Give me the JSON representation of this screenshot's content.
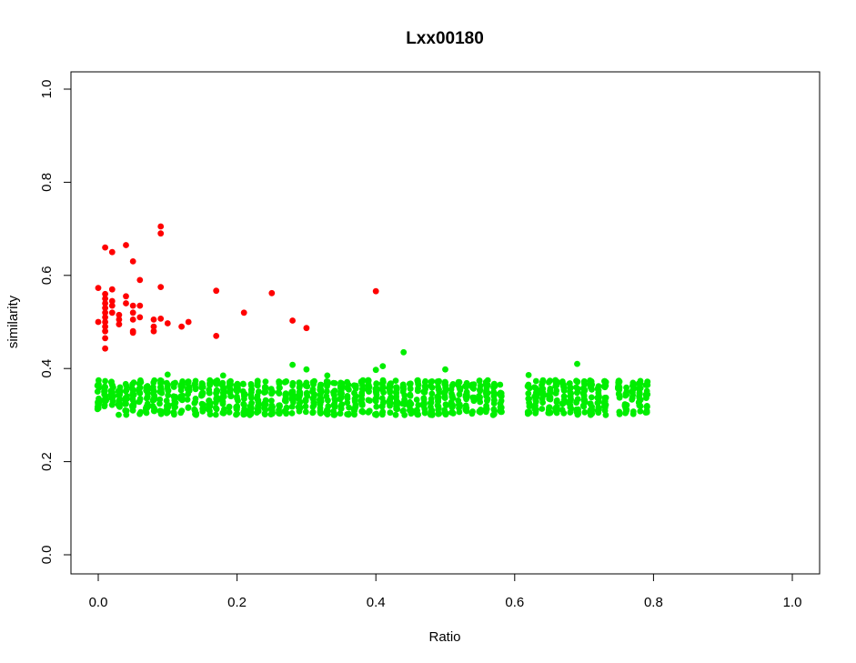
{
  "chart_data": {
    "type": "scatter",
    "title": "Lxx00180",
    "xlabel": "Ratio",
    "ylabel": "similarity",
    "xlim": [
      0,
      1.0
    ],
    "ylim": [
      0,
      1.0
    ],
    "x_ticks": [
      "0.0",
      "0.2",
      "0.4",
      "0.6",
      "0.8",
      "1.0"
    ],
    "y_ticks": [
      "0.0",
      "0.2",
      "0.4",
      "0.6",
      "0.8",
      "1.0"
    ],
    "grid": false,
    "legend": "none",
    "series": [
      {
        "color": "#ff0000",
        "points": [
          [
            0.0,
            0.573
          ],
          [
            0.0,
            0.5
          ],
          [
            0.01,
            0.66
          ],
          [
            0.01,
            0.56
          ],
          [
            0.01,
            0.55
          ],
          [
            0.01,
            0.54
          ],
          [
            0.01,
            0.53
          ],
          [
            0.01,
            0.52
          ],
          [
            0.01,
            0.51
          ],
          [
            0.01,
            0.5
          ],
          [
            0.01,
            0.49
          ],
          [
            0.01,
            0.48
          ],
          [
            0.01,
            0.465
          ],
          [
            0.01,
            0.443
          ],
          [
            0.02,
            0.65
          ],
          [
            0.02,
            0.57
          ],
          [
            0.02,
            0.545
          ],
          [
            0.02,
            0.535
          ],
          [
            0.02,
            0.52
          ],
          [
            0.03,
            0.515
          ],
          [
            0.03,
            0.505
          ],
          [
            0.03,
            0.495
          ],
          [
            0.04,
            0.665
          ],
          [
            0.04,
            0.555
          ],
          [
            0.04,
            0.54
          ],
          [
            0.05,
            0.63
          ],
          [
            0.05,
            0.535
          ],
          [
            0.05,
            0.52
          ],
          [
            0.05,
            0.505
          ],
          [
            0.05,
            0.48
          ],
          [
            0.05,
            0.477
          ],
          [
            0.06,
            0.59
          ],
          [
            0.06,
            0.535
          ],
          [
            0.06,
            0.51
          ],
          [
            0.08,
            0.505
          ],
          [
            0.08,
            0.49
          ],
          [
            0.08,
            0.48
          ],
          [
            0.09,
            0.705
          ],
          [
            0.09,
            0.69
          ],
          [
            0.09,
            0.575
          ],
          [
            0.09,
            0.507
          ],
          [
            0.1,
            0.497
          ],
          [
            0.12,
            0.49
          ],
          [
            0.13,
            0.5
          ],
          [
            0.17,
            0.567
          ],
          [
            0.17,
            0.47
          ],
          [
            0.21,
            0.52
          ],
          [
            0.25,
            0.562
          ],
          [
            0.28,
            0.503
          ],
          [
            0.3,
            0.487
          ],
          [
            0.4,
            0.566
          ]
        ]
      },
      {
        "color": "#00ee00",
        "xmin": 0.0,
        "xmax": 0.79,
        "step": 0.01,
        "ymin": 0.3,
        "ymax": 0.375,
        "outliers": [
          [
            0.1,
            0.387
          ],
          [
            0.18,
            0.385
          ],
          [
            0.28,
            0.408
          ],
          [
            0.3,
            0.398
          ],
          [
            0.33,
            0.385
          ],
          [
            0.4,
            0.397
          ],
          [
            0.41,
            0.405
          ],
          [
            0.44,
            0.435
          ],
          [
            0.5,
            0.398
          ],
          [
            0.62,
            0.386
          ],
          [
            0.69,
            0.41
          ]
        ]
      }
    ]
  }
}
